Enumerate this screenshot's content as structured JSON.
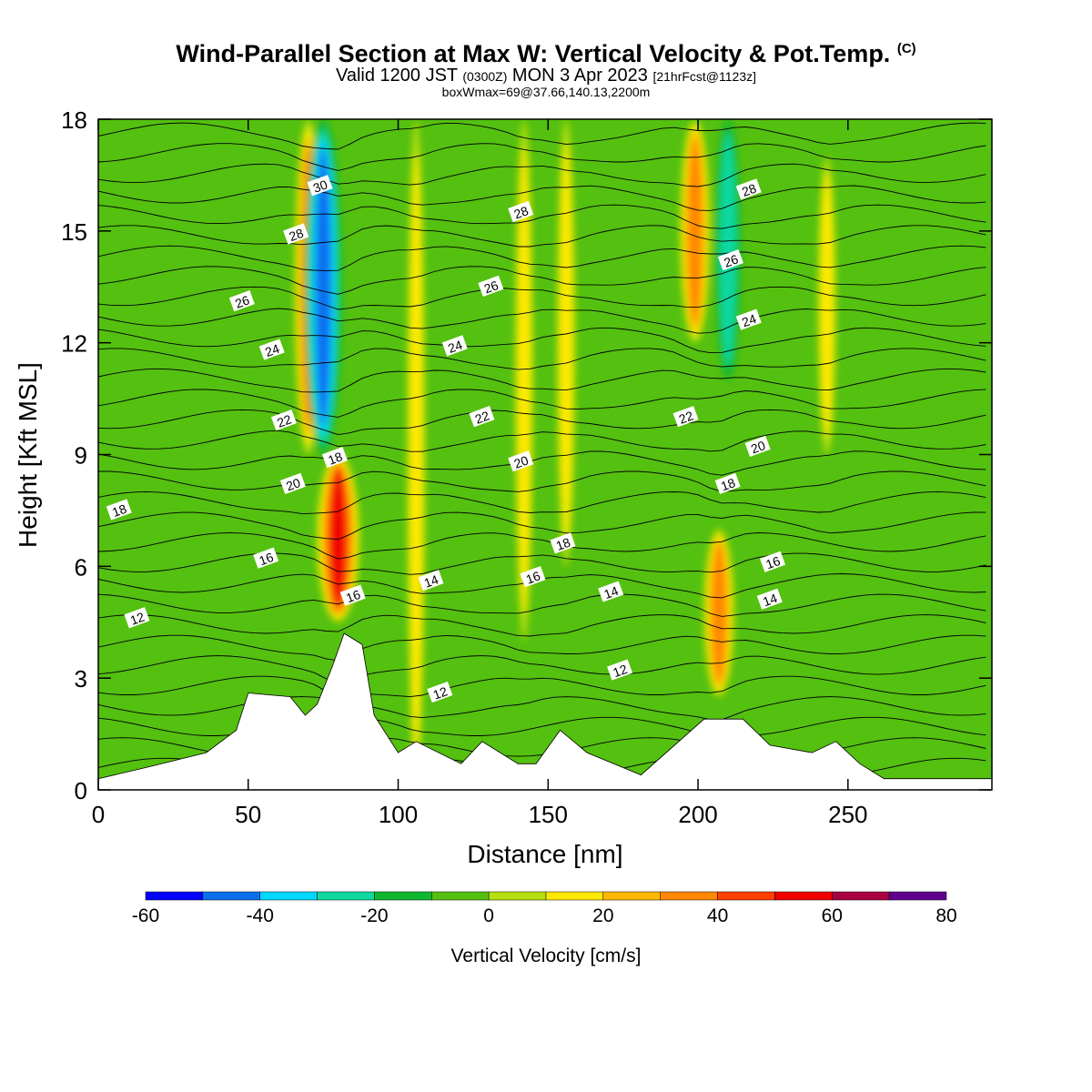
{
  "header": {
    "title": "Wind-Parallel Section at Max W: Vertical Velocity & Pot.Temp.",
    "copyright": "(C)",
    "valid_line_a": "Valid 1200 JST ",
    "valid_zulu": "(0300Z)",
    "valid_line_b": " MON 3 Apr 2023 ",
    "forecast_info": "[21hrFcst@1123z]",
    "box_info": "boxWmax=69@37.66,140.13,2200m"
  },
  "chart_data": {
    "type": "heatmap",
    "title": "Wind-Parallel Section at Max W: Vertical Velocity & Pot.Temp.",
    "xlabel": "Distance [nm]",
    "ylabel": "Height [Kft MSL]",
    "xlim": [
      0,
      298
    ],
    "ylim": [
      0,
      18
    ],
    "x_ticks": [
      "0",
      "50",
      "100",
      "150",
      "200",
      "250"
    ],
    "y_ticks": [
      "0",
      "3",
      "6",
      "9",
      "12",
      "15",
      "18"
    ],
    "colorbar": {
      "label": "Vertical Velocity [cm/s]",
      "levels": [
        -60,
        -50,
        -40,
        -30,
        -20,
        -10,
        0,
        10,
        20,
        30,
        40,
        50,
        60,
        70,
        80
      ],
      "tick_labels": [
        "-60",
        "-40",
        "-20",
        "0",
        "20",
        "40",
        "60",
        "80"
      ],
      "colors": [
        "#0000ff",
        "#0a70f0",
        "#00d8ff",
        "#10d8a0",
        "#10b830",
        "#54c010",
        "#b8e010",
        "#ffe800",
        "#ffb800",
        "#ff8800",
        "#ff4000",
        "#f00000",
        "#a80040",
        "#600090"
      ]
    },
    "updrafts": [
      {
        "x": 70,
        "z_bottom": 9,
        "z_top": 18,
        "w": 35
      },
      {
        "x": 80,
        "z_bottom": 4.5,
        "z_top": 9,
        "w": 60
      },
      {
        "x": 106,
        "z_bottom": 0,
        "z_top": 18,
        "w": 20
      },
      {
        "x": 142,
        "z_bottom": 4,
        "z_top": 18,
        "w": 20
      },
      {
        "x": 156,
        "z_bottom": 6,
        "z_top": 18,
        "w": 20
      },
      {
        "x": 199,
        "z_bottom": 12,
        "z_top": 18,
        "w": 40
      },
      {
        "x": 207,
        "z_bottom": 2.5,
        "z_top": 7,
        "w": 40
      },
      {
        "x": 243,
        "z_bottom": 9,
        "z_top": 17,
        "w": 20
      }
    ],
    "downdrafts": [
      {
        "x": 75,
        "z_bottom": 9,
        "z_top": 18,
        "w": -50
      },
      {
        "x": 210,
        "z_bottom": 11,
        "z_top": 18,
        "w": -30
      }
    ],
    "theta_contour_labels": [
      {
        "value": "30",
        "x": 74,
        "z": 16.2
      },
      {
        "value": "28",
        "x": 66,
        "z": 14.9
      },
      {
        "value": "26",
        "x": 48,
        "z": 13.1
      },
      {
        "value": "24",
        "x": 58,
        "z": 11.8
      },
      {
        "value": "22",
        "x": 62,
        "z": 9.9
      },
      {
        "value": "20",
        "x": 65,
        "z": 8.2
      },
      {
        "value": "18",
        "x": 79,
        "z": 8.9
      },
      {
        "value": "18",
        "x": 7,
        "z": 7.5
      },
      {
        "value": "16",
        "x": 56,
        "z": 6.2
      },
      {
        "value": "16",
        "x": 85,
        "z": 5.2
      },
      {
        "value": "12",
        "x": 13,
        "z": 4.6
      },
      {
        "value": "28",
        "x": 141,
        "z": 15.5
      },
      {
        "value": "26",
        "x": 131,
        "z": 13.5
      },
      {
        "value": "24",
        "x": 119,
        "z": 11.9
      },
      {
        "value": "22",
        "x": 128,
        "z": 10.0
      },
      {
        "value": "20",
        "x": 141,
        "z": 8.8
      },
      {
        "value": "18",
        "x": 155,
        "z": 6.6
      },
      {
        "value": "16",
        "x": 145,
        "z": 5.7
      },
      {
        "value": "14",
        "x": 111,
        "z": 5.6
      },
      {
        "value": "14",
        "x": 171,
        "z": 5.3
      },
      {
        "value": "12",
        "x": 114,
        "z": 2.6
      },
      {
        "value": "12",
        "x": 174,
        "z": 3.2
      },
      {
        "value": "28",
        "x": 217,
        "z": 16.1
      },
      {
        "value": "26",
        "x": 211,
        "z": 14.2
      },
      {
        "value": "24",
        "x": 217,
        "z": 12.6
      },
      {
        "value": "22",
        "x": 196,
        "z": 10.0
      },
      {
        "value": "20",
        "x": 220,
        "z": 9.2
      },
      {
        "value": "18",
        "x": 210,
        "z": 8.2
      },
      {
        "value": "16",
        "x": 225,
        "z": 6.1
      },
      {
        "value": "14",
        "x": 224,
        "z": 5.1
      }
    ],
    "terrain_kft": [
      {
        "x": 0,
        "z": 0.3
      },
      {
        "x": 16,
        "z": 0.6
      },
      {
        "x": 36,
        "z": 1.0
      },
      {
        "x": 46,
        "z": 1.6
      },
      {
        "x": 50,
        "z": 2.6
      },
      {
        "x": 64,
        "z": 2.5
      },
      {
        "x": 69,
        "z": 2.0
      },
      {
        "x": 73,
        "z": 2.3
      },
      {
        "x": 78,
        "z": 3.3
      },
      {
        "x": 82,
        "z": 4.2
      },
      {
        "x": 88,
        "z": 3.9
      },
      {
        "x": 92,
        "z": 2.0
      },
      {
        "x": 100,
        "z": 1.0
      },
      {
        "x": 106,
        "z": 1.3
      },
      {
        "x": 116,
        "z": 0.9
      },
      {
        "x": 121,
        "z": 0.7
      },
      {
        "x": 128,
        "z": 1.3
      },
      {
        "x": 140,
        "z": 0.7
      },
      {
        "x": 146,
        "z": 0.7
      },
      {
        "x": 154,
        "z": 1.6
      },
      {
        "x": 163,
        "z": 1.0
      },
      {
        "x": 181,
        "z": 0.4
      },
      {
        "x": 202,
        "z": 1.9
      },
      {
        "x": 215,
        "z": 1.9
      },
      {
        "x": 224,
        "z": 1.2
      },
      {
        "x": 238,
        "z": 1.0
      },
      {
        "x": 246,
        "z": 1.3
      },
      {
        "x": 254,
        "z": 0.7
      },
      {
        "x": 262,
        "z": 0.3
      },
      {
        "x": 298,
        "z": 0.3
      }
    ]
  }
}
